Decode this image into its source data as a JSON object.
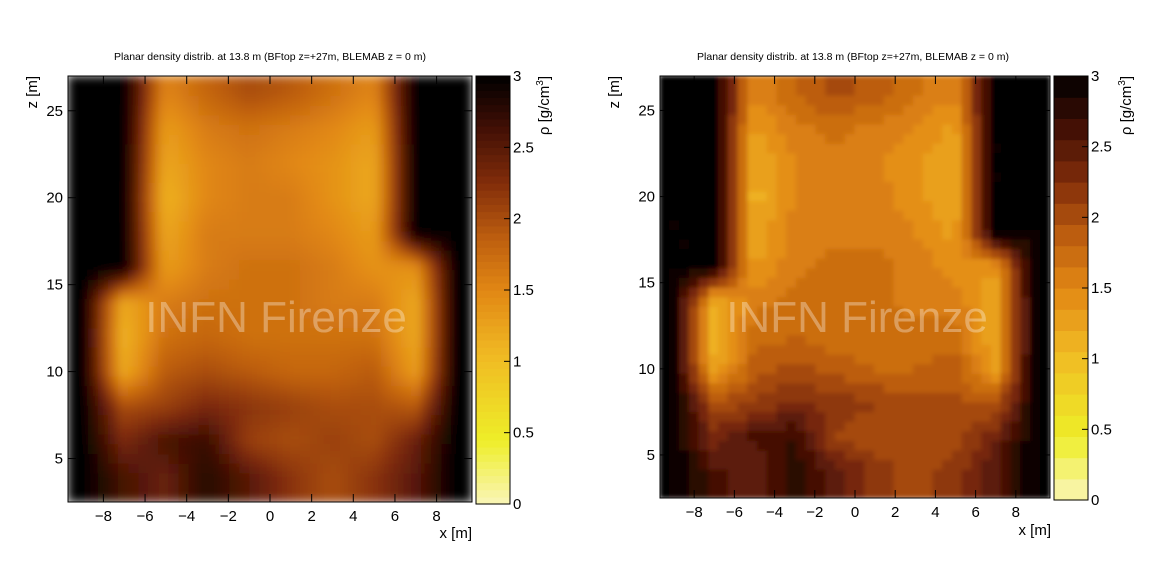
{
  "watermark": "INFN Firenze",
  "chart_data": [
    {
      "type": "heatmap",
      "title": "Planar density distrib. at 13.8 m (BFtop z=+27m, BLEMAB z = 0 m)",
      "xlabel": "x [m]",
      "ylabel": "z [m]",
      "colorbar_label": "ρ [g/cm³]",
      "xlim": [
        -9.7,
        9.7
      ],
      "ylim": [
        2.5,
        27
      ],
      "zlim": [
        0,
        3
      ],
      "x_ticks": [
        "−8",
        "−6",
        "−4",
        "−2",
        "0",
        "2",
        "4",
        "6",
        "8"
      ],
      "y_ticks": [
        "5",
        "10",
        "15",
        "20",
        "25"
      ],
      "colorbar_ticks": [
        "0",
        "0.5",
        "1",
        "1.5",
        "2",
        "2.5",
        "3"
      ],
      "rendering": "continuous",
      "x": [
        -9,
        -7,
        -5,
        -3,
        -1,
        1,
        3,
        5,
        7,
        9
      ],
      "z": [
        4,
        6,
        8,
        10,
        12,
        14,
        16,
        18,
        20,
        22,
        24,
        26
      ],
      "density": [
        [
          3.0,
          2.6,
          2.4,
          2.8,
          2.5,
          2.2,
          2.0,
          2.2,
          2.5,
          3.0
        ],
        [
          3.0,
          2.3,
          2.6,
          2.7,
          2.1,
          2.0,
          2.1,
          2.0,
          2.4,
          3.0
        ],
        [
          3.0,
          2.0,
          2.1,
          2.3,
          2.2,
          2.1,
          2.0,
          2.0,
          1.9,
          3.0
        ],
        [
          3.0,
          1.2,
          1.9,
          2.0,
          1.9,
          1.8,
          1.8,
          1.9,
          1.3,
          3.0
        ],
        [
          3.0,
          1.1,
          1.7,
          1.8,
          1.7,
          1.7,
          1.7,
          1.7,
          1.2,
          3.0
        ],
        [
          3.0,
          1.2,
          1.6,
          1.7,
          1.7,
          1.7,
          1.6,
          1.6,
          1.2,
          3.0
        ],
        [
          3.0,
          3.0,
          1.3,
          1.6,
          1.7,
          1.7,
          1.6,
          1.4,
          1.4,
          3.0
        ],
        [
          3.0,
          3.0,
          1.2,
          1.6,
          1.6,
          1.6,
          1.5,
          1.3,
          3.0,
          3.0
        ],
        [
          3.0,
          3.0,
          1.1,
          1.5,
          1.6,
          1.6,
          1.4,
          1.2,
          3.0,
          3.0
        ],
        [
          3.0,
          3.0,
          1.2,
          1.5,
          1.6,
          1.5,
          1.4,
          1.2,
          3.0,
          3.0
        ],
        [
          3.0,
          3.0,
          1.3,
          1.6,
          1.7,
          1.6,
          1.5,
          1.3,
          3.0,
          3.0
        ],
        [
          3.0,
          3.0,
          1.5,
          1.8,
          2.0,
          1.9,
          1.7,
          1.5,
          3.0,
          3.0
        ]
      ]
    },
    {
      "type": "heatmap",
      "title": "Planar density distrib. at 13.8 m (BFtop z=+27m, BLEMAB z = 0 m)",
      "xlabel": "x [m]",
      "ylabel": "z [m]",
      "colorbar_label": "ρ [g/cm³]",
      "xlim": [
        -9.7,
        9.7
      ],
      "ylim": [
        2.5,
        27
      ],
      "zlim": [
        0,
        3
      ],
      "x_ticks": [
        "−8",
        "−6",
        "−4",
        "−2",
        "0",
        "2",
        "4",
        "6",
        "8"
      ],
      "y_ticks": [
        "5",
        "10",
        "15",
        "20",
        "25"
      ],
      "colorbar_ticks": [
        "0",
        "0.5",
        "1",
        "1.5",
        "2",
        "2.5",
        "3"
      ],
      "rendering": "contour",
      "contour_levels": 20,
      "x": [
        -9,
        -7,
        -5,
        -3,
        -1,
        1,
        3,
        5,
        7,
        9
      ],
      "z": [
        4,
        6,
        8,
        10,
        12,
        14,
        16,
        18,
        20,
        22,
        24,
        26
      ],
      "density": [
        [
          3.0,
          2.6,
          2.4,
          2.8,
          2.5,
          2.2,
          2.0,
          2.2,
          2.5,
          3.0
        ],
        [
          3.0,
          2.3,
          2.6,
          2.7,
          2.1,
          2.0,
          2.1,
          2.0,
          2.4,
          3.0
        ],
        [
          3.0,
          2.0,
          2.1,
          2.3,
          2.2,
          2.1,
          2.0,
          2.0,
          1.9,
          3.0
        ],
        [
          3.0,
          1.2,
          1.9,
          2.0,
          1.9,
          1.8,
          1.8,
          1.9,
          1.3,
          3.0
        ],
        [
          3.0,
          1.1,
          1.7,
          1.8,
          1.7,
          1.7,
          1.7,
          1.7,
          1.2,
          3.0
        ],
        [
          3.0,
          1.2,
          1.6,
          1.7,
          1.7,
          1.7,
          1.6,
          1.6,
          1.2,
          3.0
        ],
        [
          3.0,
          3.0,
          1.3,
          1.6,
          1.7,
          1.7,
          1.6,
          1.4,
          1.4,
          3.0
        ],
        [
          3.0,
          3.0,
          1.2,
          1.6,
          1.6,
          1.6,
          1.5,
          1.3,
          3.0,
          3.0
        ],
        [
          3.0,
          3.0,
          1.1,
          1.5,
          1.6,
          1.6,
          1.4,
          1.2,
          3.0,
          3.0
        ],
        [
          3.0,
          3.0,
          1.2,
          1.5,
          1.6,
          1.5,
          1.4,
          1.2,
          3.0,
          3.0
        ],
        [
          3.0,
          3.0,
          1.3,
          1.6,
          1.7,
          1.6,
          1.5,
          1.3,
          3.0,
          3.0
        ],
        [
          3.0,
          3.0,
          1.5,
          1.8,
          2.0,
          1.9,
          1.7,
          1.5,
          3.0,
          3.0
        ]
      ]
    }
  ]
}
